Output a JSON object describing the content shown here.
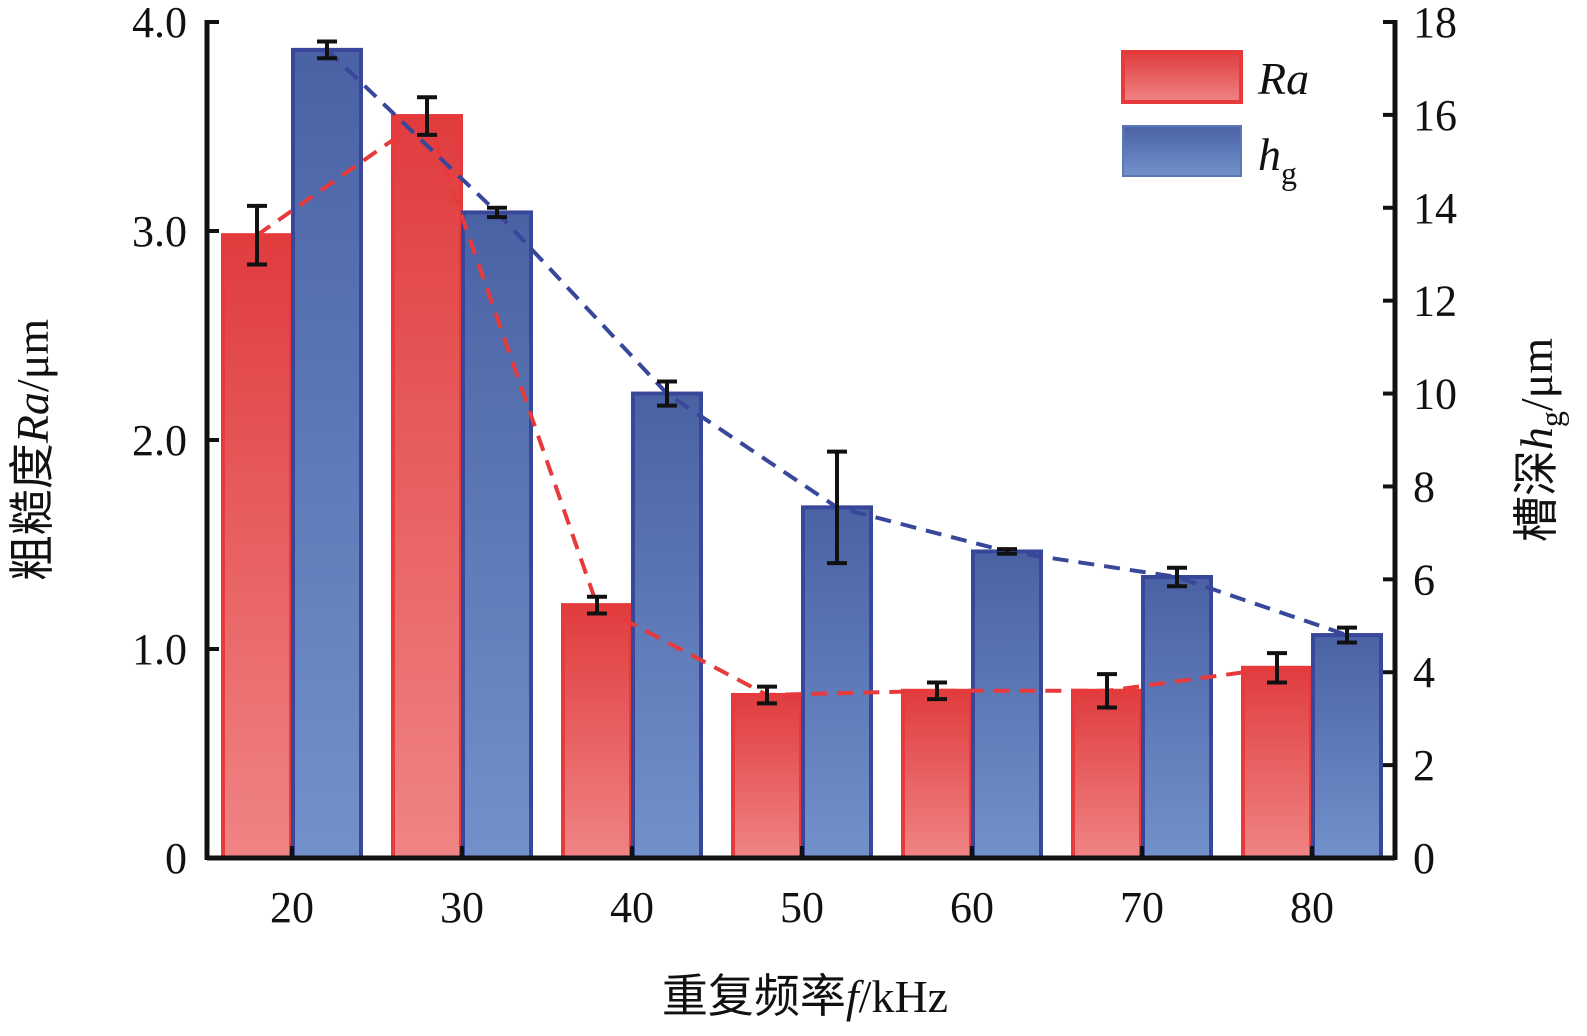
{
  "chart_data": {
    "type": "bar",
    "categories": [
      "20",
      "30",
      "40",
      "50",
      "60",
      "70",
      "80"
    ],
    "xlabel": "重复频率f/kHz",
    "xlabel_parts": {
      "cn": "重复频率",
      "var": "f",
      "unit": "/kHz"
    },
    "ylabel_left": "粗糙度Ra/μm",
    "ylabel_left_parts": {
      "cn": "粗糙度",
      "var": "Ra",
      "unit": "/μm"
    },
    "ylabel_right": "槽深hg/μm",
    "ylabel_right_parts": {
      "cn": "槽深",
      "var": "h",
      "sub": "g",
      "unit": "/μm"
    },
    "ylim_left": [
      0,
      4.0
    ],
    "ylim_right": [
      0,
      18
    ],
    "yticks_left": [
      "0",
      "1.0",
      "2.0",
      "3.0",
      "4.0"
    ],
    "yticks_left_values": [
      0,
      1,
      2,
      3,
      4
    ],
    "yticks_right": [
      "0",
      "2",
      "4",
      "6",
      "8",
      "10",
      "12",
      "14",
      "16",
      "18"
    ],
    "yticks_right_values": [
      0,
      2,
      4,
      6,
      8,
      10,
      12,
      14,
      16,
      18
    ],
    "legend_position": "top-right",
    "series": [
      {
        "name": "Ra",
        "legend_var": "Ra",
        "axis": "left",
        "color": "#e63a3c",
        "fill_top": "#e03c3e",
        "fill_bottom": "#f08484",
        "values": [
          2.98,
          3.55,
          1.21,
          0.78,
          0.8,
          0.8,
          0.91
        ],
        "errors": [
          0.14,
          0.09,
          0.04,
          0.04,
          0.04,
          0.08,
          0.07
        ]
      },
      {
        "name": "hg",
        "legend_var": "h",
        "legend_sub": "g",
        "axis": "right",
        "color": "#38479a",
        "fill_top": "#4a62a4",
        "fill_bottom": "#7291cb",
        "values": [
          17.4,
          13.9,
          10.0,
          7.55,
          6.6,
          6.05,
          4.8
        ],
        "errors": [
          0.18,
          0.1,
          0.26,
          1.2,
          0.05,
          0.2,
          0.16
        ]
      }
    ]
  }
}
